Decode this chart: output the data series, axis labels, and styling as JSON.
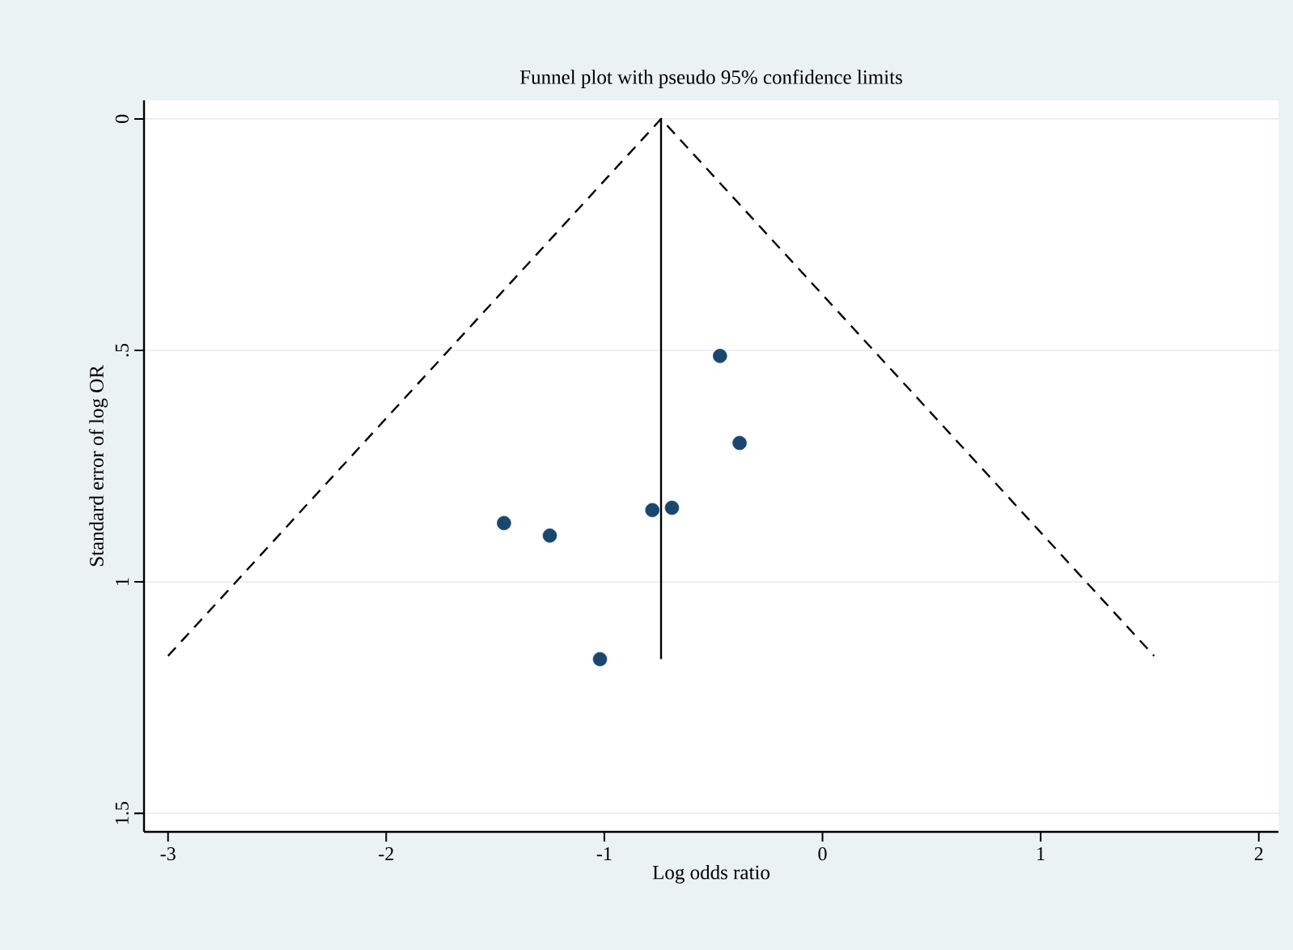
{
  "chart_data": {
    "type": "scatter",
    "title": "Funnel plot with pseudo 95% confidence limits",
    "xlabel": "Log odds ratio",
    "ylabel": "Standard error of log OR",
    "xlim": [
      -3.11,
      2.09
    ],
    "xticks": [
      -3,
      -2,
      -1,
      0,
      1,
      2
    ],
    "ylim": [
      1.54,
      -0.04
    ],
    "yticks": [
      0,
      {
        "value": 0.5,
        "label": ".5"
      },
      1,
      1.5
    ],
    "grid": "y",
    "series": [
      {
        "marker": "circle",
        "color": "#1a476f",
        "x": [
          -0.47,
          -0.38,
          -0.69,
          -0.78,
          -1.46,
          -1.25,
          -1.02
        ],
        "values": [
          0.512,
          0.7,
          0.84,
          0.845,
          0.873,
          0.9,
          1.167
        ]
      },
      {
        "type": "line",
        "color": "#000000",
        "line_style": "dashed",
        "marker": "none",
        "x": [
          -3.0,
          -0.74,
          1.52
        ],
        "values": [
          1.16,
          0,
          1.16
        ]
      },
      {
        "type": "line",
        "color": "#000000",
        "line_style": "solid",
        "marker": "none",
        "x": [
          -0.74,
          -0.74
        ],
        "values": [
          0,
          1.167
        ]
      }
    ]
  }
}
